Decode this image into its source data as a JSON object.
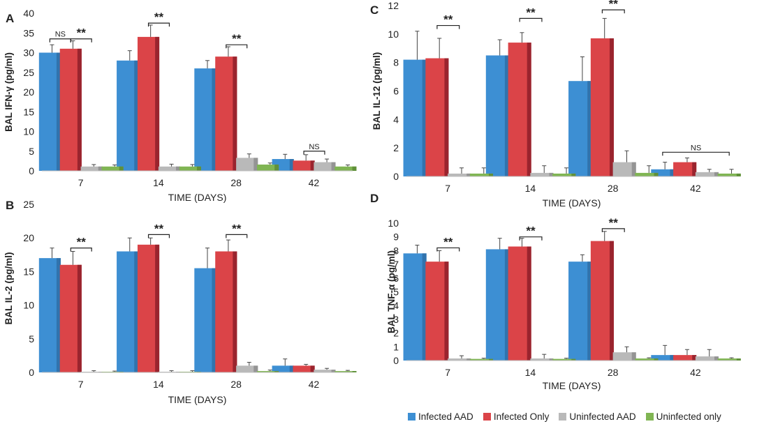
{
  "chart_data": [
    {
      "type": "bar",
      "panel_label": "A",
      "categories": [
        "7",
        "14",
        "28",
        "42"
      ],
      "ylabel": "BAL IFN-γ (pg/ml)",
      "xlabel": "TIME (DAYS)",
      "ylim": [
        0,
        40
      ],
      "yticks": [
        0,
        5,
        10,
        15,
        20,
        25,
        30,
        35,
        40
      ],
      "series": [
        {
          "name": "Infected AAD",
          "values": [
            30,
            28,
            26,
            3
          ],
          "errors": [
            2,
            2.5,
            2,
            1.2
          ]
        },
        {
          "name": "Infected Only",
          "values": [
            31,
            34,
            29,
            2.6
          ],
          "errors": [
            2,
            3,
            2.5,
            1.5
          ]
        },
        {
          "name": "Uninfected AAD",
          "values": [
            1.1,
            1.1,
            3.3,
            2.2
          ],
          "errors": [
            0.5,
            0.6,
            1.0,
            0.8
          ]
        },
        {
          "name": "Uninfected only",
          "values": [
            1.1,
            1.1,
            1.6,
            1.1
          ],
          "errors": [
            0.4,
            0.5,
            0.4,
            0.4
          ]
        }
      ],
      "annotations": [
        {
          "text": "NS",
          "category": 0,
          "from": 0,
          "to": 1,
          "y": 33.5
        },
        {
          "text": "**",
          "category": 0,
          "from": 1,
          "to": 2,
          "y": 33.5
        },
        {
          "text": "**",
          "category": 1,
          "from": 1,
          "to": 2,
          "y": 37.5
        },
        {
          "text": "**",
          "category": 2,
          "from": 1,
          "to": 2,
          "y": 32
        },
        {
          "text": "NS",
          "category": 3,
          "from": 1,
          "to": 2,
          "y": 5
        }
      ]
    },
    {
      "type": "bar",
      "panel_label": "B",
      "categories": [
        "7",
        "14",
        "28",
        "42"
      ],
      "ylabel": "BAL  IL-2 (pg/ml)",
      "xlabel": "TIME (DAYS)",
      "ylim": [
        0,
        25
      ],
      "yticks": [
        0,
        5,
        10,
        15,
        20,
        25
      ],
      "series": [
        {
          "name": "Infected AAD",
          "values": [
            17,
            18,
            15.5,
            1
          ],
          "errors": [
            1.5,
            2,
            3,
            1
          ]
        },
        {
          "name": "Infected Only",
          "values": [
            16,
            19,
            18,
            1
          ],
          "errors": [
            2,
            1,
            1.7,
            0.2
          ]
        },
        {
          "name": "Uninfected AAD",
          "values": [
            0.1,
            0.1,
            1.0,
            0.4
          ],
          "errors": [
            0.15,
            0.15,
            0.5,
            0.2
          ]
        },
        {
          "name": "Uninfected only",
          "values": [
            0.1,
            0.1,
            0.2,
            0.2
          ],
          "errors": [
            0.1,
            0.15,
            0.15,
            0.1
          ]
        }
      ],
      "annotations": [
        {
          "text": "**",
          "category": 0,
          "from": 1,
          "to": 2,
          "y": 18.5
        },
        {
          "text": "**",
          "category": 1,
          "from": 1,
          "to": 2,
          "y": 20.5
        },
        {
          "text": "**",
          "category": 2,
          "from": 1,
          "to": 2,
          "y": 20.5
        }
      ]
    },
    {
      "type": "bar",
      "panel_label": "C",
      "categories": [
        "7",
        "14",
        "28",
        "42"
      ],
      "ylabel": "BAL IL-12 (pg/ml)",
      "xlabel": "TIME (DAYS)",
      "ylim": [
        0,
        12
      ],
      "yticks": [
        0,
        2,
        4,
        6,
        8,
        10,
        12
      ],
      "series": [
        {
          "name": "Infected AAD",
          "values": [
            8.2,
            8.5,
            6.7,
            0.5
          ],
          "errors": [
            2,
            1.1,
            1.7,
            0.5
          ]
        },
        {
          "name": "Infected Only",
          "values": [
            8.3,
            9.4,
            9.7,
            1.0
          ],
          "errors": [
            1.4,
            0.7,
            1.4,
            0.3
          ]
        },
        {
          "name": "Uninfected AAD",
          "values": [
            0.2,
            0.25,
            1.0,
            0.3
          ],
          "errors": [
            0.4,
            0.5,
            0.8,
            0.2
          ]
        },
        {
          "name": "Uninfected only",
          "values": [
            0.2,
            0.2,
            0.25,
            0.2
          ],
          "errors": [
            0.4,
            0.4,
            0.5,
            0.3
          ]
        }
      ],
      "annotations": [
        {
          "text": "**",
          "category": 0,
          "from": 1,
          "to": 2,
          "y": 10.6
        },
        {
          "text": "**",
          "category": 1,
          "from": 1,
          "to": 2,
          "y": 11.1
        },
        {
          "text": "**",
          "category": 2,
          "from": 1,
          "to": 2,
          "y": 11.7
        },
        {
          "text": "NS",
          "category": 3,
          "from": 0,
          "to": 3,
          "y": 1.7
        }
      ]
    },
    {
      "type": "bar",
      "panel_label": "D",
      "categories": [
        "7",
        "14",
        "28",
        "42"
      ],
      "ylabel": "BAL  TNF-α (pg/ml)",
      "xlabel": "TIME (DAYS)",
      "ylim": [
        0,
        10
      ],
      "yticks": [
        0,
        1,
        2,
        3,
        4,
        5,
        6,
        7,
        8,
        9,
        10
      ],
      "series": [
        {
          "name": "Infected AAD",
          "values": [
            7.8,
            8.1,
            7.2,
            0.4
          ],
          "errors": [
            0.6,
            0.8,
            0.5,
            0.7
          ]
        },
        {
          "name": "Infected Only",
          "values": [
            7.2,
            8.3,
            8.7,
            0.4
          ],
          "errors": [
            0.8,
            0.6,
            0.7,
            0.4
          ]
        },
        {
          "name": "Uninfected AAD",
          "values": [
            0.15,
            0.15,
            0.6,
            0.3
          ],
          "errors": [
            0.2,
            0.3,
            0.4,
            0.5
          ]
        },
        {
          "name": "Uninfected only",
          "values": [
            0.12,
            0.12,
            0.15,
            0.15
          ],
          "errors": [
            0.05,
            0.05,
            0.05,
            0.05
          ]
        }
      ],
      "annotations": [
        {
          "text": "**",
          "category": 0,
          "from": 1,
          "to": 2,
          "y": 8.2
        },
        {
          "text": "**",
          "category": 1,
          "from": 1,
          "to": 2,
          "y": 9.0
        },
        {
          "text": "**",
          "category": 2,
          "from": 1,
          "to": 2,
          "y": 9.6
        }
      ]
    }
  ],
  "legend": [
    {
      "name": "Infected AAD",
      "color": "#3d8fd3"
    },
    {
      "name": "Infected Only",
      "color": "#db4448"
    },
    {
      "name": "Uninfected AAD",
      "color": "#b9b9b9"
    },
    {
      "name": "Uninfected only",
      "color": "#80b553"
    }
  ],
  "colors": {
    "series": [
      "#3d8fd3",
      "#db4448",
      "#b9b9b9",
      "#80b553"
    ],
    "series_dark": [
      "#2f6fa6",
      "#8e1f2a",
      "#8d8d8d",
      "#5a8a36"
    ],
    "text": "#222222",
    "axis": "#bfbfbf"
  }
}
